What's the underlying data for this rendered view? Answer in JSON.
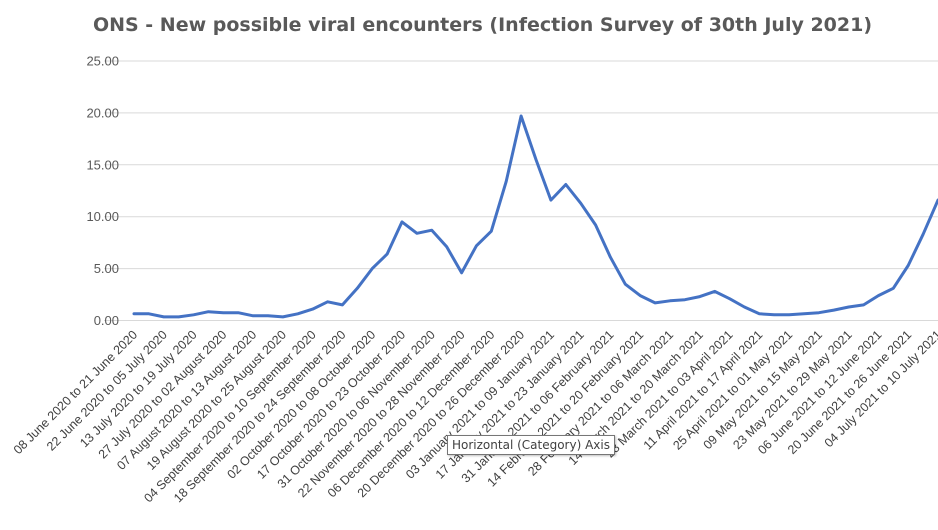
{
  "chart_data": {
    "type": "line",
    "title": "ONS - New possible viral encounters (Infection Survey of 30th July 2021)",
    "xlabel": "",
    "ylabel": "",
    "ylim": [
      0,
      25
    ],
    "yticks": [
      "0.00",
      "5.00",
      "10.00",
      "15.00",
      "20.00",
      "25.00"
    ],
    "grid": "horizontal",
    "legend": "none",
    "line_color": "#4472C4",
    "categories": [
      "08 June 2020 to 21 June 2020",
      "",
      "22 June 2020 to 05 July 2020",
      "",
      "13 July 2020 to 19 July 2020",
      "",
      "27 July 2020 to 02 August 2020",
      "",
      "07 August 2020 to 13 August 2020",
      "",
      "19 August 2020 to 25 August 2020",
      "",
      "04 September 2020 to 10 September 2020",
      "",
      "18 September 2020 to 24 September 2020",
      "",
      "02 October 2020 to 08 October 2020",
      "",
      "17 October 2020 to 23 October 2020",
      "",
      "31 October 2020 to 06 November 2020",
      "",
      "22 November 2020 to 28 November 2020",
      "",
      "06 December 2020 to 12 December 2020",
      "",
      "20 December 2020 to 26 December 2020",
      "",
      "03 January 2021 to 09 January 2021",
      "",
      "17 January 2021 to 23 January 2021",
      "",
      "31 January 2021 to 06 February 2021",
      "",
      "14 February 2021 to 20 February 2021",
      "",
      "28 February 2021 to 06 March 2021",
      "",
      "14 March 2021 to 20 March 2021",
      "",
      "28 March 2021 to 03 April 2021",
      "",
      "11 April 2021 to 17 April 2021",
      "",
      "25 April 2021 to 01 May 2021",
      "",
      "09 May 2021 to 15 May 2021",
      "",
      "23 May 2021 to 29 May 2021",
      "",
      "06 June 2021 to 12 June 2021",
      "",
      "20 June 2021 to 26 June 2021",
      "",
      "04 July 2021 to 10 July 2021"
    ],
    "series": [
      {
        "values": [
          0.65,
          0.65,
          0.35,
          0.35,
          0.55,
          0.85,
          0.75,
          0.75,
          0.45,
          0.45,
          0.35,
          0.65,
          1.1,
          1.8,
          1.5,
          3.1,
          5.0,
          6.4,
          9.5,
          8.4,
          8.7,
          7.1,
          4.6,
          7.2,
          8.6,
          13.4,
          19.7,
          15.5,
          11.6,
          13.1,
          11.3,
          9.2,
          6.1,
          3.5,
          2.4,
          1.7,
          1.9,
          2.0,
          2.3,
          2.8,
          2.1,
          1.3,
          0.65,
          0.55,
          0.55,
          0.65,
          0.75,
          1.0,
          1.3,
          1.5,
          2.4,
          3.1,
          5.3,
          8.3,
          11.6
        ]
      }
    ]
  },
  "tooltip": "Horizontal (Category) Axis"
}
